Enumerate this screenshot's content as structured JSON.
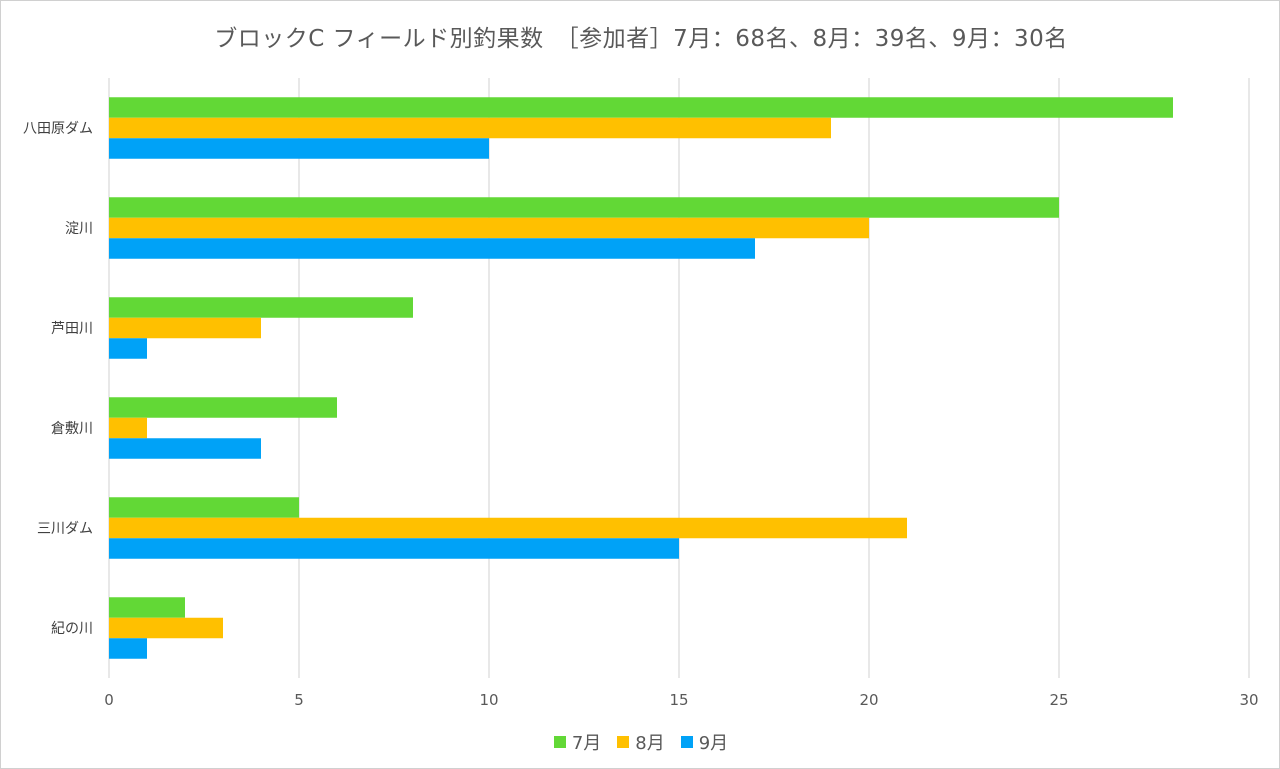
{
  "chart_data": {
    "type": "bar",
    "orientation": "horizontal",
    "title": "ブロックC フィールド別釣果数　［参加者］7月：68名、8月：39名、9月：30名",
    "categories": [
      "八田原ダム",
      "淀川",
      "芦田川",
      "倉敷川",
      "三川ダム",
      "紀の川"
    ],
    "series": [
      {
        "name": "7月",
        "color": "#62d836",
        "values": [
          28,
          25,
          8,
          6,
          5,
          2
        ]
      },
      {
        "name": "8月",
        "color": "#ffc000",
        "values": [
          19,
          20,
          4,
          1,
          21,
          3
        ]
      },
      {
        "name": "9月",
        "color": "#00a2f7",
        "values": [
          10,
          17,
          1,
          4,
          15,
          1
        ]
      }
    ],
    "xlim": [
      0,
      30
    ],
    "xticks": [
      0,
      5,
      10,
      15,
      20,
      25,
      30
    ],
    "grid": true,
    "legend_position": "bottom"
  }
}
